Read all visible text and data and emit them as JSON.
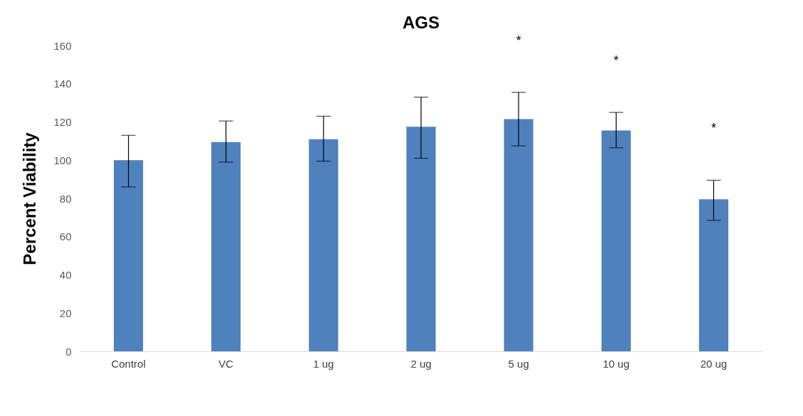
{
  "chart_data": {
    "type": "bar",
    "title": "AGS",
    "ylabel": "Percent Viability",
    "categories": [
      "Control",
      "VC",
      "1 ug",
      "2 ug",
      "5 ug",
      "10 ug",
      "20 ug"
    ],
    "values": [
      100,
      109.5,
      111,
      117.5,
      121.5,
      115.5,
      79.5
    ],
    "color": "#4f81bd",
    "errors": [
      [
        86,
        113
      ],
      [
        99,
        120.5
      ],
      [
        99.5,
        123
      ],
      [
        101,
        133
      ],
      [
        107.5,
        135.5
      ],
      [
        106.5,
        125
      ],
      [
        68.5,
        89.5
      ]
    ],
    "ylim": [
      0,
      160
    ],
    "yticks": [
      0,
      20,
      40,
      60,
      80,
      100,
      120,
      140,
      160
    ],
    "grid": false,
    "annotations": [
      "*",
      "*",
      "*"
    ]
  }
}
